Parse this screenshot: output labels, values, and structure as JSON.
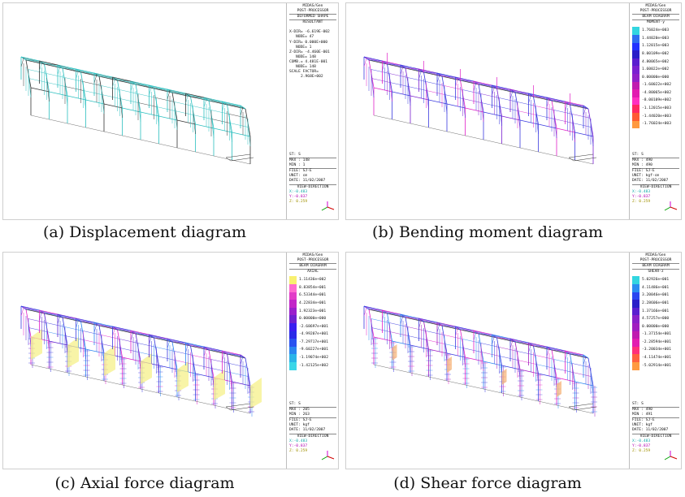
{
  "panels": [
    {
      "caption": "(a) Displacement diagram",
      "info": {
        "header": [
          "MIDAS/Gen",
          "POST-PROCESSOR"
        ],
        "mode": "DEFORMED SHAPE",
        "sub": "RESULTANT",
        "lines": [
          "X-DIR= -6.619E-002",
          "NODE= 47",
          "Y-DIR= 0.000E+000",
          "NODE= 1",
          "Z-DIR= -4.460E-001",
          "NODE= 148",
          "COMB.= 4.481E-001",
          "NODE= 148",
          "SCALE FACTOR=",
          "2.968E+002"
        ],
        "st": "ST: S",
        "max": "MAX : 148",
        "min": "MIN : 1",
        "file": "FILE: SJ-E",
        "unit": "UNIT: cm",
        "date": "DATE: 11/02/2007",
        "view": "VIEW-DIRECTION",
        "vx": "X:-0.483",
        "vy": "Y:-0.837",
        "vz": "Z: 0.259"
      }
    },
    {
      "caption": "(b) Bending moment diagram",
      "info": {
        "header": [
          "MIDAS/Gen",
          "POST-PROCESSOR"
        ],
        "mode": "BEAM DIAGRAM",
        "sub": "MOMENT-y",
        "legend": [
          "1.76024e+003",
          "1.44020e+003",
          "1.12015e+003",
          "8.00109e+002",
          "4.80065e+002",
          "1.60022e+002",
          "0.00000e+000",
          "-1.60022e+002",
          "-4.80065e+002",
          "-8.00109e+002",
          "-1.12015e+003",
          "-1.44020e+003",
          "-1.76024e+003"
        ],
        "st": "ST: S",
        "max": "MAX : 490",
        "min": "MIN : 490",
        "file": "FILE: SJ-E",
        "unit": "UNIT: kgf-cm",
        "date": "DATE: 11/02/2007",
        "view": "VIEW-DIRECTION",
        "vx": "X:-0.483",
        "vy": "Y:-0.837",
        "vz": "Z: 0.259"
      }
    },
    {
      "caption": "(c) Axial force diagram",
      "info": {
        "header": [
          "MIDAS/Gen",
          "POST-PROCESSOR"
        ],
        "mode": "BEAM DIAGRAM",
        "sub": "AXIAL",
        "legend": [
          "1.11436e+002",
          "8.83854e+001",
          "6.53344e+001",
          "4.22834e+001",
          "1.92323e+001",
          "0.00000e+000",
          "-2.68697e+001",
          "-4.99207e+001",
          "-7.29717e+001",
          "-9.60227e+001",
          "-1.19074e+002",
          "-1.42125e+002"
        ],
        "st": "ST: S",
        "max": "MAX : 205",
        "min": "MIN : 263",
        "file": "FILE: SJ-E",
        "unit": "UNIT: kgf",
        "date": "DATE: 11/02/2007",
        "view": "VIEW-DIRECTION",
        "vx": "X:-0.483",
        "vy": "Y:-0.837",
        "vz": "Z: 0.259"
      }
    },
    {
      "caption": "(d) Shear force diagram",
      "info": {
        "header": [
          "MIDAS/Gen",
          "POST-PROCESSOR"
        ],
        "mode": "BEAM DIAGRAM",
        "sub": "SHEAR-z",
        "legend": [
          "5.02926e+001",
          "4.11486e+001",
          "3.20046e+001",
          "2.28606e+001",
          "1.37166e+001",
          "4.57257e+000",
          "0.00000e+000",
          "-1.37154e+001",
          "-2.28594e+001",
          "-3.20034e+001",
          "-4.11474e+001",
          "-5.02914e+001"
        ],
        "st": "ST: S",
        "max": "MAX : 490",
        "min": "MIN : 491",
        "file": "FILE: SJ-E",
        "unit": "UNIT: kgf",
        "date": "DATE: 11/02/2007",
        "view": "VIEW-DIRECTION",
        "vx": "X:-0.483",
        "vy": "Y:-0.837",
        "vz": "Z: 0.259"
      }
    }
  ],
  "colors": {
    "frame_cyan": "#2bbfbf",
    "frame_dark": "#333333",
    "frame_blue": "#3a3adf",
    "frame_magenta": "#e020c8",
    "fill_yellow": "#f6f08a",
    "fill_orange": "#f7b57a",
    "moment_legend": [
      "#33d6e0",
      "#2f6ff0",
      "#2233ff",
      "#2a1ec8",
      "#5a1ecf",
      "#7a20d0",
      "#9020c8",
      "#c01bb0",
      "#e21cb0",
      "#ff30c0",
      "#ff2860",
      "#ff5a32",
      "#ff9a40"
    ],
    "axial_legend": [
      "#f8f070",
      "#ff6ad0",
      "#e23cc8",
      "#c224c8",
      "#9a1ecc",
      "#7020d0",
      "#3a1ef0",
      "#2a2ae8",
      "#2a52f0",
      "#2a86f0",
      "#2ab4e8",
      "#3ad6e8"
    ],
    "shear_legend": [
      "#33d6e0",
      "#2a8ef0",
      "#2a46f0",
      "#2a1ec8",
      "#5a1ecf",
      "#8a20c8",
      "#a01ec0",
      "#c01bb0",
      "#e21cb0",
      "#ff2f7a",
      "#ff6040",
      "#ff9a40"
    ]
  }
}
